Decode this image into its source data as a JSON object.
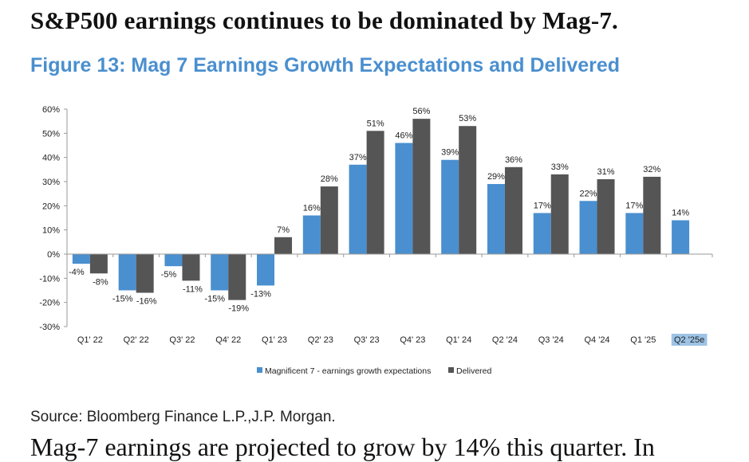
{
  "headline": "S&P500 earnings continues to be dominated by Mag-7.",
  "figure_title": "Figure 13: Mag 7 Earnings Growth Expectations and Delivered",
  "source": "Source: Bloomberg Finance L.P.,J.P. Morgan.",
  "body_text": "Mag-7 earnings are projected to grow by 14% this quarter. In",
  "chart_data": {
    "type": "bar",
    "title": "Figure 13: Mag 7 Earnings Growth Expectations and Delivered",
    "categories": [
      "Q1' 22",
      "Q2' 22",
      "Q3' 22",
      "Q4' 22",
      "Q1' 23",
      "Q2' 23",
      "Q3' 23",
      "Q4' 23",
      "Q1' 24",
      "Q2 '24",
      "Q3 '24",
      "Q4 '24",
      "Q1 '25",
      "Q2 '25e"
    ],
    "series": [
      {
        "name": "Magnificent 7 - earnings growth expectations",
        "color": "#4a8fcf",
        "values": [
          -4,
          -15,
          -5,
          -15,
          -13,
          16,
          37,
          46,
          39,
          29,
          17,
          22,
          17,
          14
        ],
        "labels": [
          "-4%",
          "-15%",
          "-5%",
          "-15%",
          "-13%",
          "16%",
          "37%",
          "46%",
          "39%",
          "29%",
          "17%",
          "22%",
          "17%",
          "14%"
        ]
      },
      {
        "name": "Delivered",
        "color": "#555555",
        "values": [
          -8,
          -16,
          -11,
          -19,
          7,
          28,
          51,
          56,
          53,
          36,
          33,
          31,
          32,
          null
        ],
        "labels": [
          "-8%",
          "-16%",
          "-11%",
          "-19%",
          "7%",
          "28%",
          "51%",
          "56%",
          "53%",
          "36%",
          "33%",
          "31%",
          "32%",
          null
        ]
      }
    ],
    "ylim": [
      -30,
      60
    ],
    "yticks": [
      -30,
      -20,
      -10,
      0,
      10,
      20,
      30,
      40,
      50,
      60
    ],
    "ytick_labels": [
      "-30%",
      "-20%",
      "-10%",
      "0%",
      "10%",
      "20%",
      "30%",
      "40%",
      "50%",
      "60%"
    ],
    "highlighted_category": "Q2 '25e",
    "highlight_color": "#9dc3e6",
    "grid": false,
    "legend_position": "bottom"
  }
}
